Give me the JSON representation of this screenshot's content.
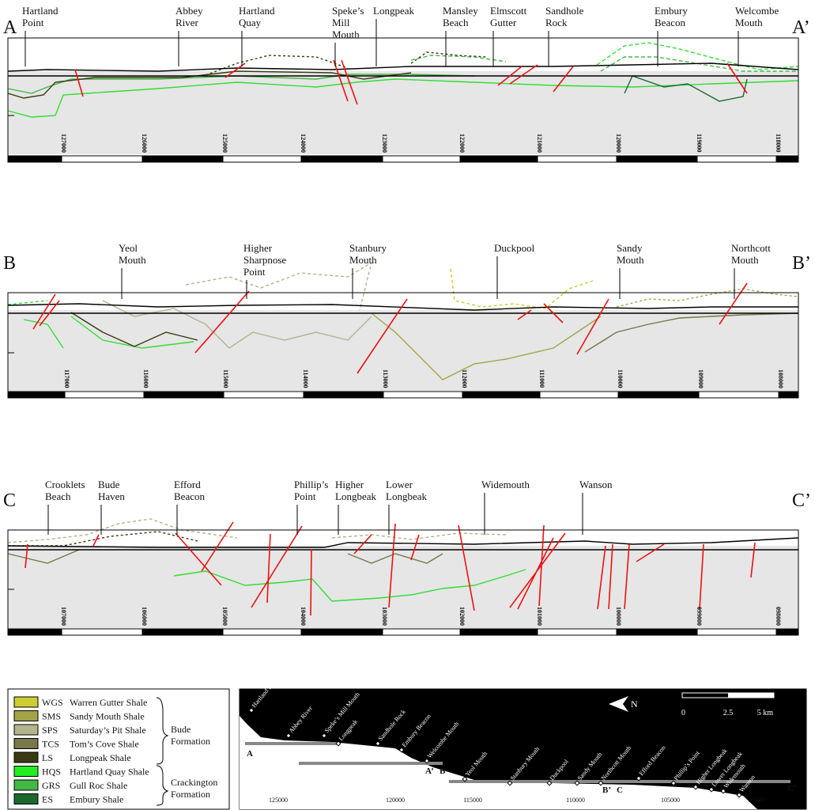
{
  "sections": [
    {
      "start": "A",
      "end": "A’",
      "places": [
        [
          "Hartland",
          "Point"
        ],
        [
          "Abbey",
          "River"
        ],
        [
          "Hartland",
          "Quay"
        ],
        [
          "Speke’s",
          "Mill",
          "Mouth"
        ],
        [
          "Longpeak"
        ],
        [
          "Mansley",
          "Beach"
        ],
        [
          "Elmscott",
          "Gutter"
        ],
        [
          "Sandhole",
          "Rock"
        ],
        [
          "Embury",
          "Beacon"
        ],
        [
          "Welcombe",
          "Mouth"
        ]
      ],
      "ticks": [
        "127000",
        "126000",
        "125000",
        "124000",
        "123000",
        "122000",
        "121000",
        "120000",
        "119000",
        "118000"
      ]
    },
    {
      "start": "B",
      "end": "B’",
      "places": [
        [
          "Yeol",
          "Mouth"
        ],
        [
          "Higher",
          "Sharpnose",
          "Point"
        ],
        [
          "Stanbury",
          "Mouth"
        ],
        [
          "Duckpool"
        ],
        [
          "Sandy",
          "Mouth"
        ],
        [
          "Northcott",
          "Mouth"
        ]
      ],
      "ticks": [
        "117000",
        "116000",
        "115000",
        "114000",
        "113000",
        "112000",
        "111000",
        "110000",
        "109000",
        "108000"
      ]
    },
    {
      "start": "C",
      "end": "C’",
      "places": [
        [
          "Crooklets",
          "Beach"
        ],
        [
          "Bude",
          "Haven"
        ],
        [
          "Efford",
          "Beacon"
        ],
        [
          "Phillip’s",
          "Point"
        ],
        [
          "Higher",
          "Longbeak"
        ],
        [
          "Lower",
          "Longbeak"
        ],
        [
          "Widemouth"
        ],
        [
          "Wanson"
        ]
      ],
      "ticks": [
        "107000",
        "106000",
        "105000",
        "104000",
        "103000",
        "102000",
        "101000",
        "100000",
        "099000",
        "098000"
      ]
    }
  ],
  "legend": {
    "items": [
      {
        "code": "WGS",
        "name": "Warren Gutter Shale",
        "color": "#cccc33"
      },
      {
        "code": "SMS",
        "name": "Sandy Mouth Shale",
        "color": "#a3a347"
      },
      {
        "code": "SPS",
        "name": "Saturday’s Pit Shale",
        "color": "#b3b38c"
      },
      {
        "code": "TCS",
        "name": "Tom’s Cove Shale",
        "color": "#77774a"
      },
      {
        "code": "LS",
        "name": "Longpeak Shale",
        "color": "#3a3a12"
      },
      {
        "code": "HQS",
        "name": "Hartland Quay Shale",
        "color": "#22ee22"
      },
      {
        "code": "GRS",
        "name": "Gull Roc Shale",
        "color": "#44b844"
      },
      {
        "code": "ES",
        "name": "Embury Shale",
        "color": "#1a6a2e"
      }
    ],
    "groups": [
      [
        "Bude",
        "Formation"
      ],
      [
        "Crackington",
        "Formation"
      ]
    ]
  },
  "map": {
    "north": "N",
    "scale": [
      "0",
      "2.5",
      "5 km"
    ],
    "places": [
      "Hartland Point",
      "Abbey River",
      "Speke’s Mill Mouth",
      "Longpeak",
      "Sandhole Rock",
      "Embury Beacon",
      "Welcombe Mouth",
      "Yeol Mouth",
      "Stanbury Mouth",
      "Duckpool",
      "Sandy Mouth",
      "Northcott Mouth",
      "Efford Beacon",
      "Phillip’s Point",
      "Higher Longbeak",
      "Lower Longbeak",
      "Widemouth",
      "Wanson"
    ],
    "section_marks": [
      "A",
      "A’",
      "B",
      "B’",
      "C",
      "C’"
    ],
    "xticks": [
      "125000",
      "120000",
      "115000",
      "110000",
      "105000",
      "100000"
    ]
  }
}
